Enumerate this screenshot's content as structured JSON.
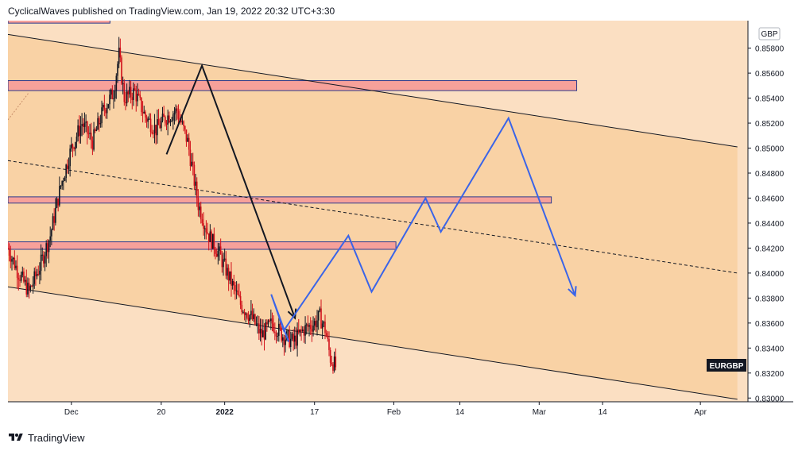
{
  "header": {
    "publish_line": "CyclicalWaves published on TradingView.com, Jan 19, 2022 20:32 UTC+3:30"
  },
  "footer": {
    "brand": "TradingView"
  },
  "currency": "GBP",
  "symbol": "EURGBP",
  "colors": {
    "background": "#fbdfc2",
    "channel_fill": "#f9d2a5",
    "zone_fill": "#f7a19a",
    "zone_border": "#2d3a8c",
    "candle_up": "#131722",
    "candle_down": "#d1101a",
    "path_blue": "#3a64e8",
    "path_black": "#131722",
    "axis_text": "#131722"
  },
  "chart_data": {
    "type": "candlestick",
    "symbol": "EURGBP",
    "currency": "GBP",
    "ylim": [
      0.8297,
      0.8602
    ],
    "xlim": [
      0,
      140
    ],
    "y_ticks": [
      "0.83000",
      "0.83200",
      "0.83400",
      "0.83600",
      "0.83800",
      "0.84000",
      "0.84200",
      "0.84400",
      "0.84600",
      "0.84800",
      "0.85000",
      "0.85200",
      "0.85400",
      "0.85600",
      "0.85800"
    ],
    "x_ticks": [
      {
        "label": "Dec",
        "x": 12
      },
      {
        "label": "20",
        "x": 29
      },
      {
        "label": "2022",
        "x": 41
      },
      {
        "label": "17",
        "x": 58
      },
      {
        "label": "Feb",
        "x": 73
      },
      {
        "label": "14",
        "x": 85.5
      },
      {
        "label": "Mar",
        "x": 100.5
      },
      {
        "label": "14",
        "x": 112.5
      },
      {
        "label": "Apr",
        "x": 131
      }
    ],
    "close_path": [
      [
        0,
        0.842
      ],
      [
        2,
        0.84
      ],
      [
        4,
        0.8385
      ],
      [
        6,
        0.8405
      ],
      [
        8,
        0.843
      ],
      [
        10,
        0.847
      ],
      [
        12,
        0.85
      ],
      [
        14,
        0.852
      ],
      [
        16,
        0.8505
      ],
      [
        18,
        0.853
      ],
      [
        20,
        0.8545
      ],
      [
        21,
        0.8575
      ],
      [
        22,
        0.854
      ],
      [
        24,
        0.8545
      ],
      [
        26,
        0.8525
      ],
      [
        28,
        0.8515
      ],
      [
        30,
        0.8525
      ],
      [
        32,
        0.853
      ],
      [
        34,
        0.8505
      ],
      [
        35,
        0.848
      ],
      [
        36,
        0.8455
      ],
      [
        38,
        0.843
      ],
      [
        40,
        0.8415
      ],
      [
        42,
        0.8395
      ],
      [
        44,
        0.8375
      ],
      [
        46,
        0.8365
      ],
      [
        48,
        0.835
      ],
      [
        50,
        0.836
      ],
      [
        52,
        0.835
      ],
      [
        54,
        0.8345
      ],
      [
        56,
        0.8355
      ],
      [
        58,
        0.836
      ],
      [
        59,
        0.8365
      ],
      [
        60,
        0.8355
      ],
      [
        61,
        0.8332
      ],
      [
        62,
        0.8325
      ]
    ],
    "channel_upper": [
      [
        0,
        0.8591
      ],
      [
        138,
        0.8501
      ]
    ],
    "channel_lower": [
      [
        0,
        0.8389
      ],
      [
        138,
        0.8299
      ]
    ],
    "channel_mid": [
      [
        0,
        0.849
      ],
      [
        138,
        0.84
      ]
    ],
    "zones": [
      {
        "x0": 0,
        "x1": 19.3,
        "y0": 0.86,
        "y1": 0.8606
      },
      {
        "x0": 0,
        "x1": 107.6,
        "y0": 0.8554,
        "y1": 0.8546
      },
      {
        "x0": 0,
        "x1": 102.8,
        "y0": 0.8461,
        "y1": 0.8456
      },
      {
        "x0": 0,
        "x1": 73.4,
        "y0": 0.8425,
        "y1": 0.8419
      }
    ],
    "projection_black": [
      [
        30,
        0.8495
      ],
      [
        36.7,
        0.8566
      ],
      [
        54.3,
        0.8364
      ]
    ],
    "projection_blue": [
      [
        53.1,
        0.8345
      ],
      [
        49.8,
        0.8383
      ],
      [
        52.2,
        0.8354
      ],
      [
        64.4,
        0.843
      ],
      [
        68.8,
        0.8385
      ],
      [
        79.0,
        0.846
      ],
      [
        81.9,
        0.8433
      ],
      [
        94.7,
        0.8524
      ],
      [
        107.3,
        0.8382
      ]
    ]
  }
}
